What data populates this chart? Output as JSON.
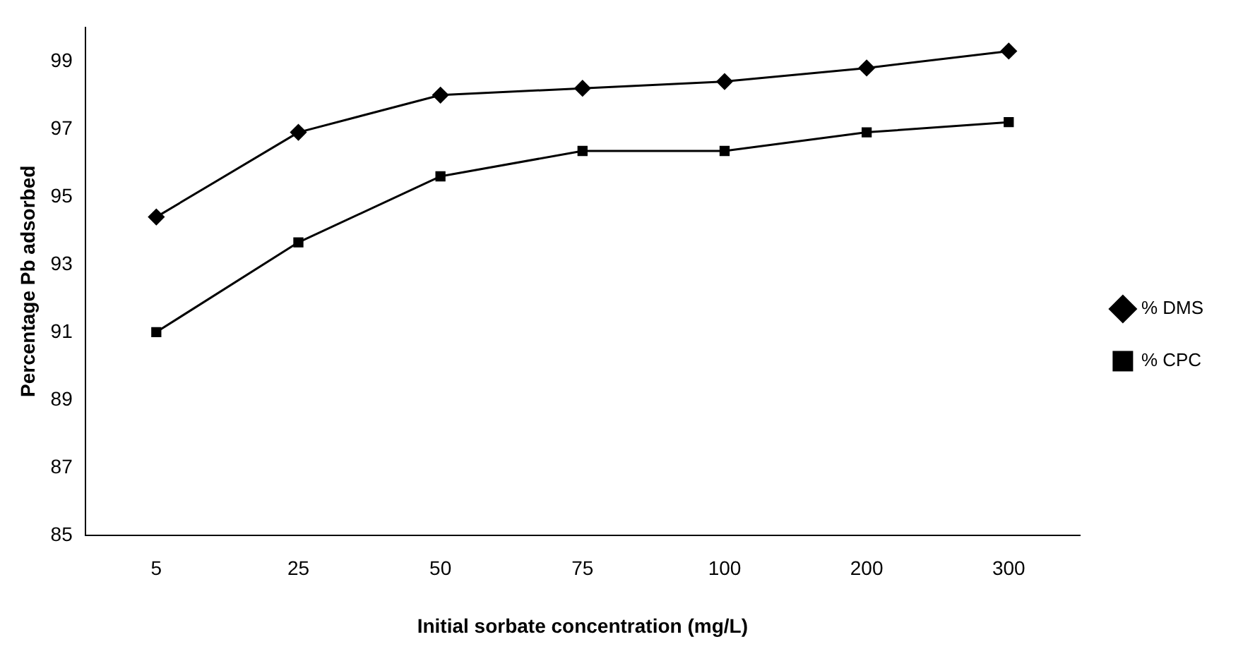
{
  "chart_data": {
    "type": "line",
    "xlabel": "Initial sorbate concentration (mg/L)",
    "ylabel": "Percentage Pb adsorbed",
    "categories": [
      "5",
      "25",
      "50",
      "75",
      "100",
      "200",
      "300"
    ],
    "series": [
      {
        "name": "% DMS",
        "color": "#000000",
        "marker": "diamond",
        "values": [
          94.4,
          96.9,
          98.0,
          98.2,
          98.4,
          98.8,
          99.3
        ]
      },
      {
        "name": "% CPC",
        "color": "#000000",
        "marker": "square",
        "values": [
          91.0,
          93.65,
          95.6,
          96.35,
          96.35,
          96.9,
          97.2
        ]
      }
    ],
    "ylim": [
      85,
      100
    ],
    "yticks": [
      85,
      87,
      89,
      91,
      93,
      95,
      97,
      99
    ],
    "grid": false,
    "legend": "right",
    "line_style": "solid"
  }
}
